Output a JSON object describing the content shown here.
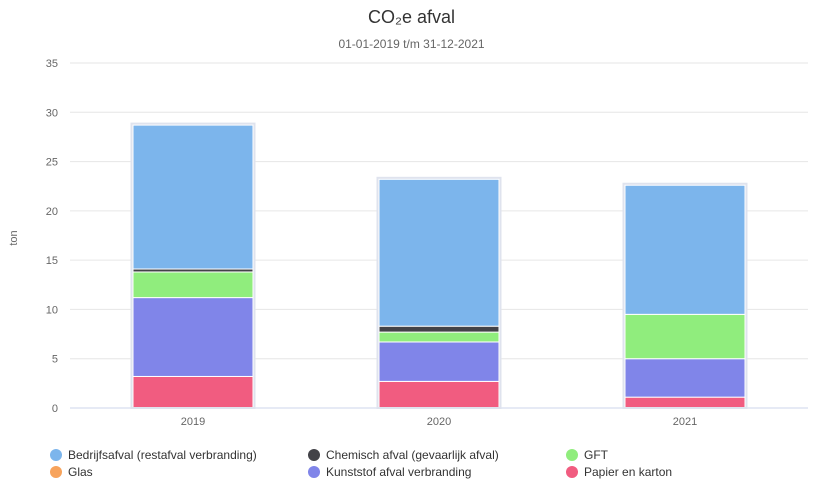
{
  "chart_data": {
    "type": "bar",
    "stacked": true,
    "title": "CO₂e afval",
    "subtitle": "01-01-2019 t/m 31-12-2021",
    "xlabel": "",
    "ylabel": "ton",
    "ylim": [
      0,
      35
    ],
    "yticks": [
      0,
      5,
      10,
      15,
      20,
      25,
      30,
      35
    ],
    "grid": true,
    "legend_position": "bottom",
    "categories": [
      "2019",
      "2020",
      "2021"
    ],
    "series": [
      {
        "name": "Papier en karton",
        "color": "#f15c80",
        "values": [
          3.2,
          2.7,
          1.1
        ]
      },
      {
        "name": "Kunststof afval verbranding",
        "color": "#8085e9",
        "values": [
          8.0,
          4.0,
          3.9
        ]
      },
      {
        "name": "Glas",
        "color": "#f7a35c",
        "values": [
          0,
          0,
          0
        ]
      },
      {
        "name": "GFT",
        "color": "#90ed7d",
        "values": [
          2.6,
          1.0,
          4.5
        ]
      },
      {
        "name": "Chemisch afval (gevaarlijk afval)",
        "color": "#434348",
        "values": [
          0.3,
          0.6,
          0
        ]
      },
      {
        "name": "Bedrijfsafval (restafval verbranding)",
        "color": "#7cb5ec",
        "values": [
          14.6,
          14.9,
          13.1
        ]
      }
    ],
    "legend_order": [
      "Bedrijfsafval (restafval verbranding)",
      "Chemisch afval (gevaarlijk afval)",
      "GFT",
      "Glas",
      "Kunststof afval verbranding",
      "Papier en karton"
    ]
  }
}
